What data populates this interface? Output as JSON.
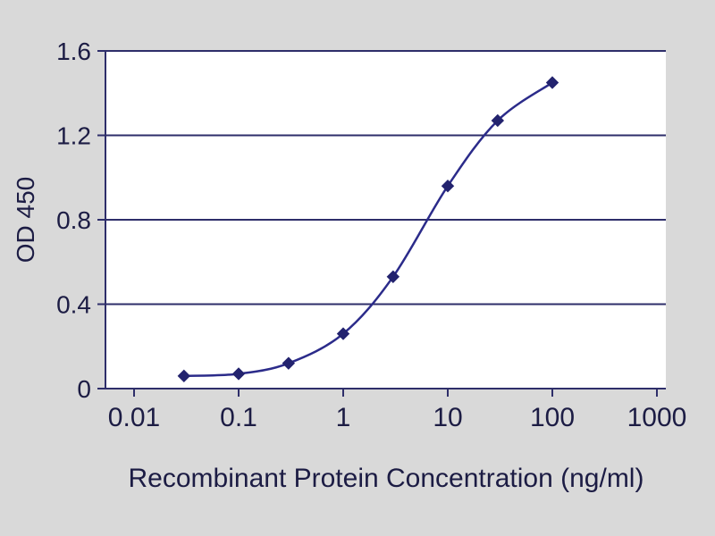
{
  "chart_data": {
    "type": "line",
    "title": "",
    "xlabel": "Recombinant Protein Concentration (ng/ml)",
    "ylabel": "OD 450",
    "x_scale": "log",
    "x": [
      0.03,
      0.1,
      0.3,
      1,
      3,
      10,
      30,
      100
    ],
    "y": [
      0.06,
      0.07,
      0.12,
      0.26,
      0.53,
      0.96,
      1.27,
      1.45
    ],
    "xlim": [
      0.01,
      1000
    ],
    "ylim": [
      0,
      1.6
    ],
    "x_ticks": [
      "0.01",
      "0.1",
      "1",
      "10",
      "100",
      "1000"
    ],
    "y_ticks": [
      "0",
      "0.4",
      "0.8",
      "1.2",
      "1.6"
    ],
    "grid": "horizontal-only",
    "legend": "none",
    "marker_shape": "diamond",
    "colors": {
      "line": "#2b2b8a",
      "marker": "#23236e",
      "axis": "#2e2e6a",
      "text": "#1c1c44",
      "plot_background": "#ffffff",
      "page_background": "#d9d9d9"
    }
  }
}
